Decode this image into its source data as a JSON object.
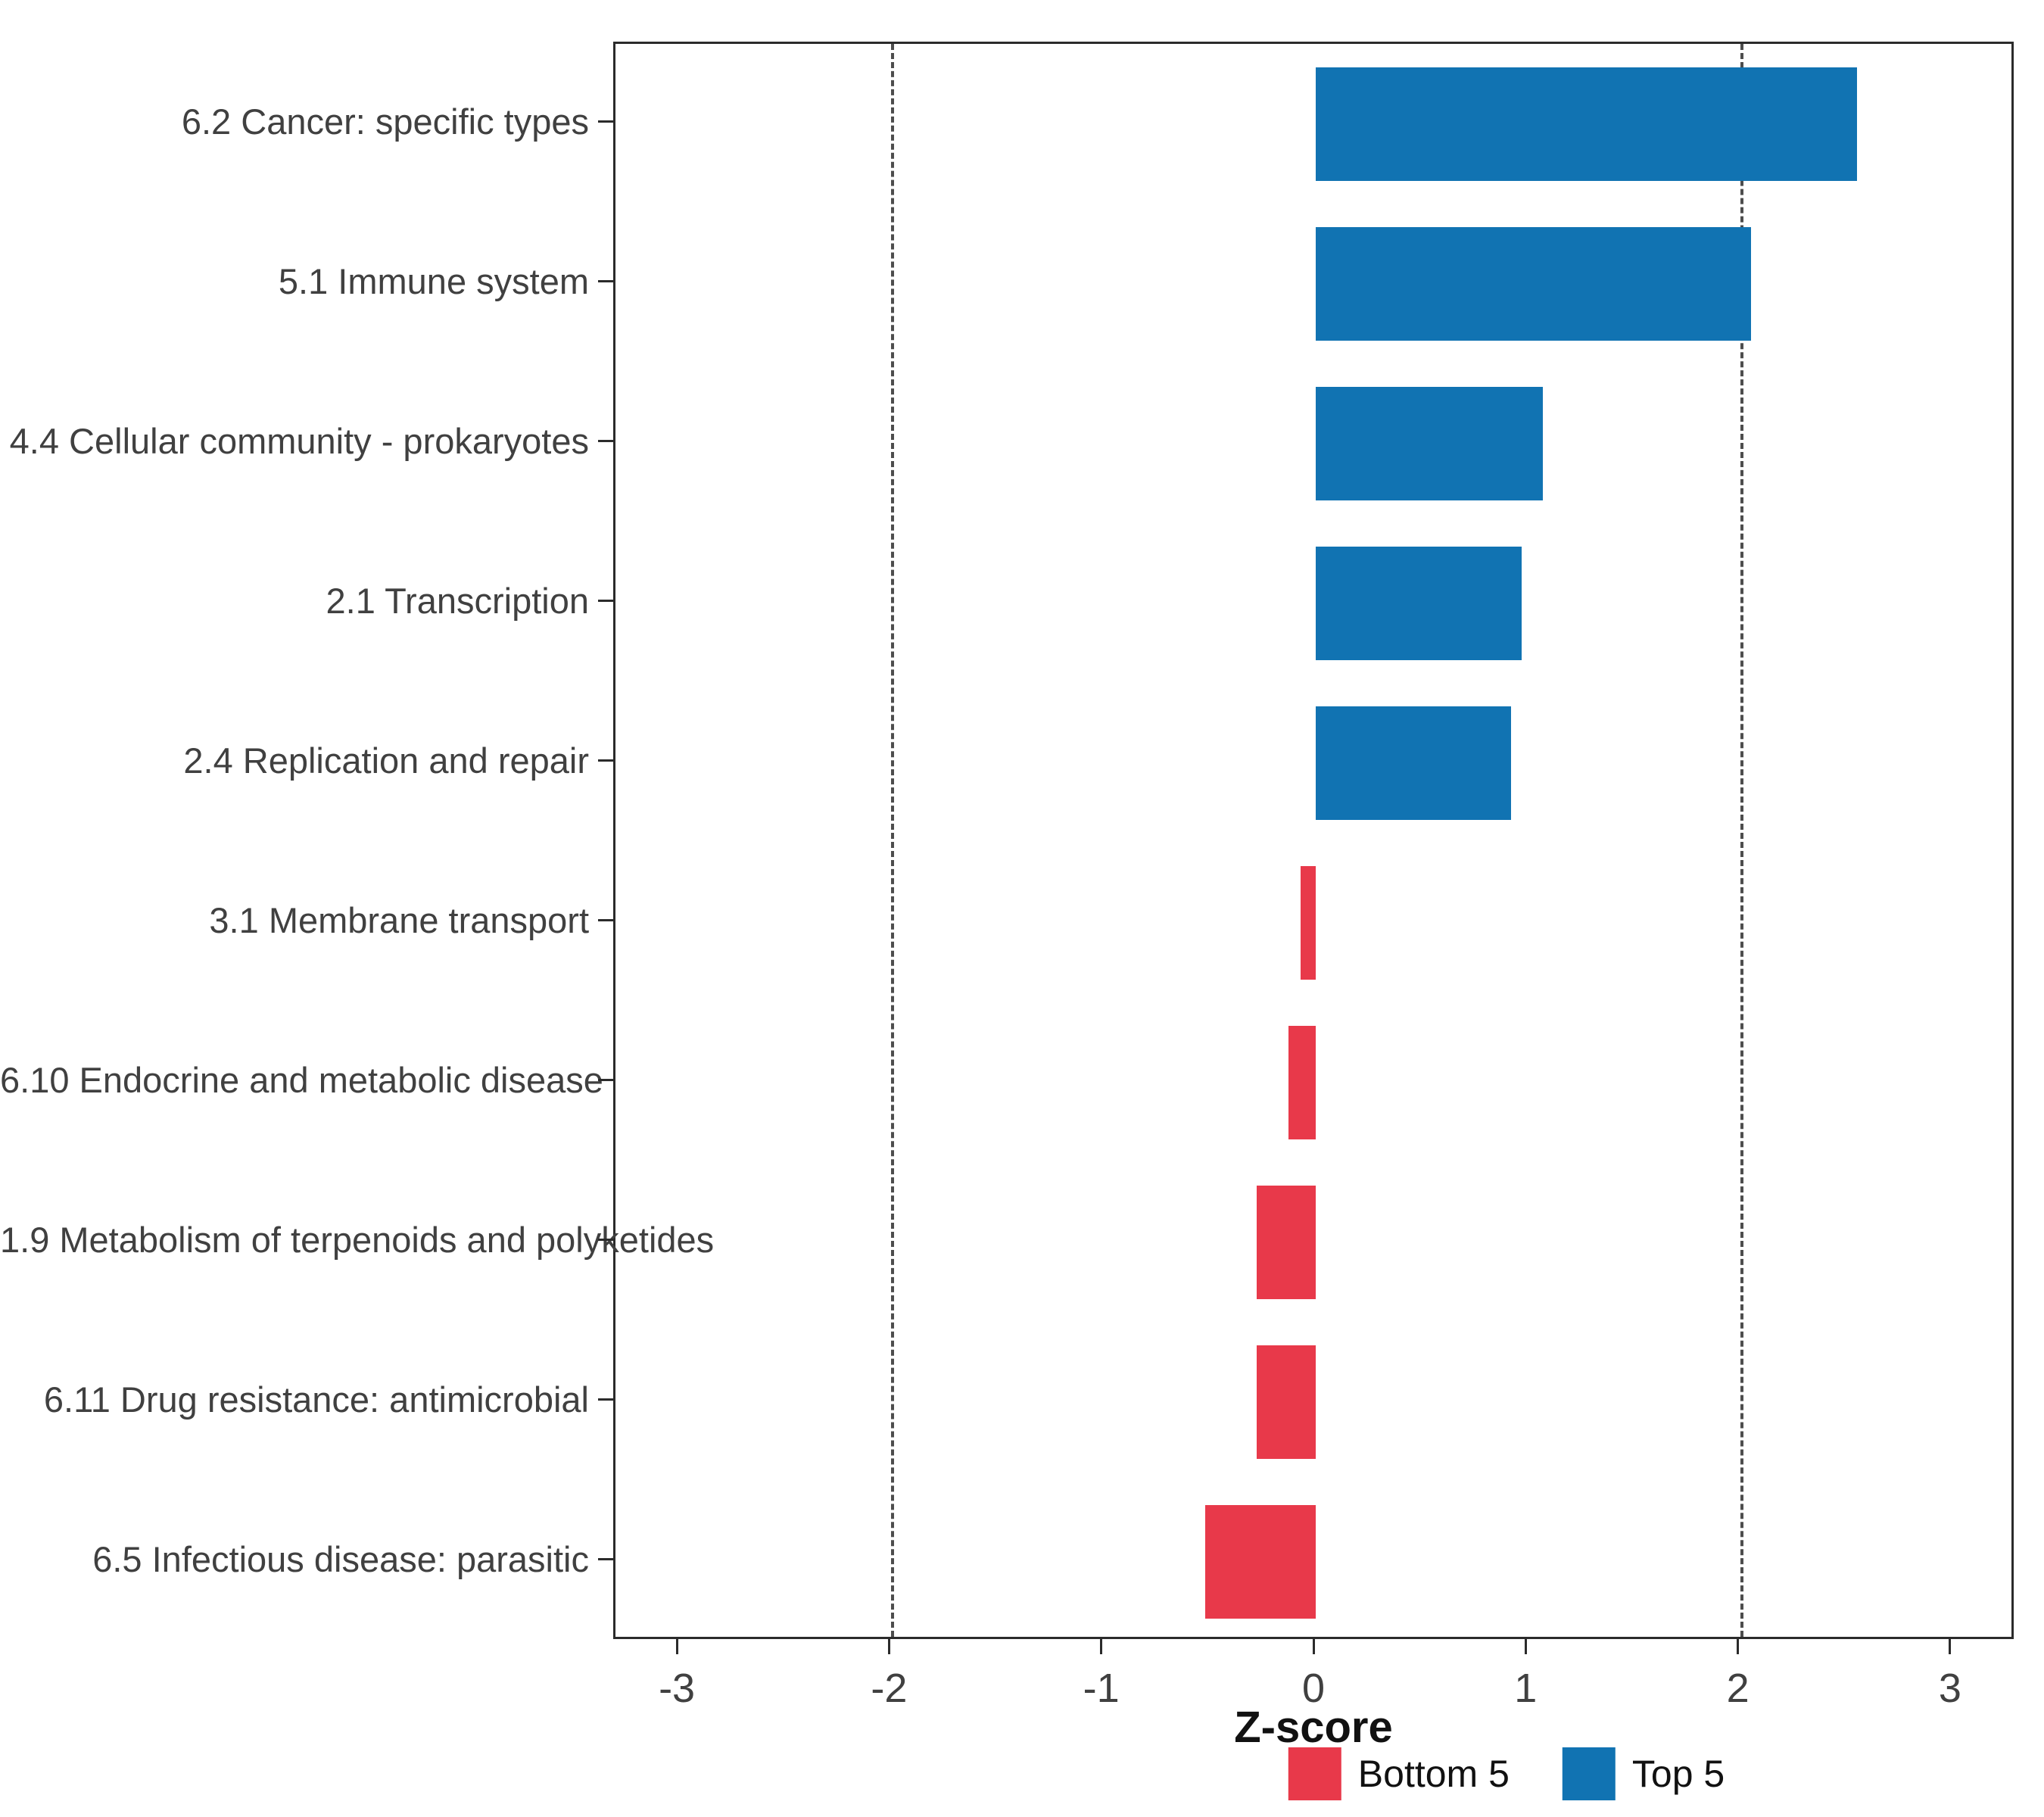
{
  "figure": {
    "background": "#ffffff"
  },
  "legend": {
    "position": "bottom",
    "items": [
      {
        "label": "Bottom 5",
        "color": "#E8394A"
      },
      {
        "label": "Top 5",
        "color": "#1173B2"
      }
    ]
  },
  "chart_data": {
    "type": "bar",
    "orientation": "horizontal",
    "title": "",
    "xlabel": "Z-score",
    "ylabel": "",
    "xlim": [
      -3,
      3
    ],
    "x_ticks": [
      -3,
      -2,
      -1,
      0,
      1,
      2,
      3
    ],
    "reference_lines": [
      -2,
      2
    ],
    "grid": false,
    "legend_position": "bottom",
    "categories": [
      "6.2 Cancer: specific types",
      "5.1 Immune system",
      "4.4 Cellular community - prokaryotes",
      "2.1 Transcription",
      "2.4 Replication and repair",
      "3.1 Membrane transport",
      "6.10 Endocrine and metabolic disease",
      "1.9 Metabolism of terpenoids and polyketides",
      "6.11 Drug resistance: antimicrobial",
      "6.5 Infectious disease: parasitic"
    ],
    "values": [
      2.55,
      2.05,
      1.07,
      0.97,
      0.92,
      -0.07,
      -0.13,
      -0.28,
      -0.28,
      -0.52
    ],
    "groups": [
      "Top 5",
      "Top 5",
      "Top 5",
      "Top 5",
      "Top 5",
      "Bottom 5",
      "Bottom 5",
      "Bottom 5",
      "Bottom 5",
      "Bottom 5"
    ],
    "series": [
      {
        "name": "Z-score",
        "values": [
          2.55,
          2.05,
          1.07,
          0.97,
          0.92,
          -0.07,
          -0.13,
          -0.28,
          -0.28,
          -0.52
        ]
      }
    ]
  }
}
